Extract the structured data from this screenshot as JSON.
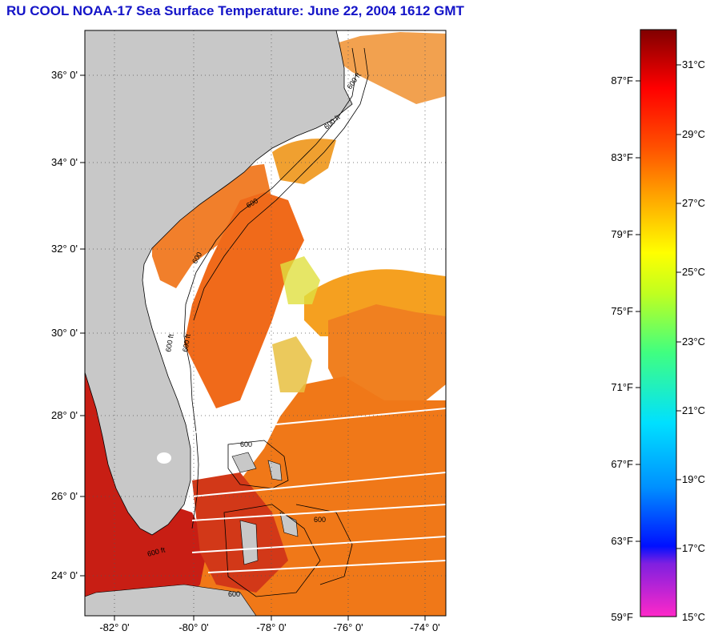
{
  "title": "RU COOL  NOAA-17  Sea Surface Temperature:  June 22, 2004 1612 GMT",
  "map": {
    "lat_ticks": [
      "36° 0'",
      "34° 0'",
      "32° 0'",
      "30° 0'",
      "28° 0'",
      "26° 0'",
      "24° 0'"
    ],
    "lon_ticks": [
      "-82° 0'",
      "-80° 0'",
      "-78° 0'",
      "-76° 0'",
      "-74° 0'"
    ],
    "contour_labels": [
      "600 ft",
      "600 ft",
      "600",
      "600",
      "600 ft",
      "600 ft",
      "600 ft",
      "600",
      "600",
      "600"
    ],
    "colors": {
      "land": "#c8c8c8",
      "cloud": "#ffffff",
      "warm": "#f07820",
      "hot": "#c81e14"
    }
  },
  "colorbar": {
    "fahrenheit": [
      "87°F",
      "83°F",
      "79°F",
      "75°F",
      "71°F",
      "67°F",
      "63°F",
      "59°F"
    ],
    "celsius": [
      "31°C",
      "29°C",
      "27°C",
      "25°C",
      "23°C",
      "21°C",
      "19°C",
      "17°C",
      "15°C"
    ],
    "gradient": [
      "#ff28c8",
      "#8020e0",
      "#0010ff",
      "#0090ff",
      "#00e0ff",
      "#40ff80",
      "#c0ff20",
      "#ffff00",
      "#ffa000",
      "#ff5000",
      "#ff0000",
      "#800000"
    ]
  }
}
